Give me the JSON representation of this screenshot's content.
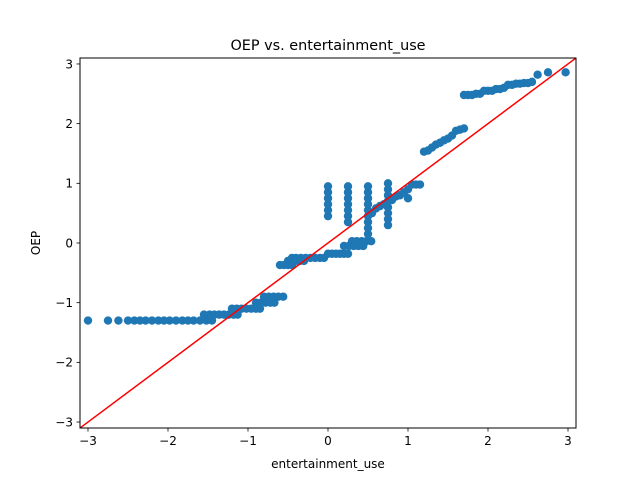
{
  "chart_data": {
    "type": "scatter",
    "title": "OEP  vs. entertainment_use",
    "xlabel": "entertainment_use",
    "ylabel": "OEP",
    "xlim": [
      -3.1,
      3.1
    ],
    "ylim": [
      -3.1,
      3.1
    ],
    "xticks": [
      -3,
      -2,
      -1,
      0,
      1,
      2,
      3
    ],
    "yticks": [
      -3,
      -2,
      -1,
      0,
      1,
      2,
      3
    ],
    "xtick_labels": [
      "−3",
      "−2",
      "−1",
      "0",
      "1",
      "2",
      "3"
    ],
    "ytick_labels": [
      "−3",
      "−2",
      "−1",
      "0",
      "1",
      "2",
      "3"
    ],
    "grid": false,
    "marker_color": "#1f77b4",
    "reference_line": {
      "slope": 1,
      "intercept": 0,
      "color": "#ff0000"
    },
    "points": [
      [
        -3.0,
        -1.3
      ],
      [
        -2.75,
        -1.3
      ],
      [
        -2.62,
        -1.3
      ],
      [
        -2.5,
        -1.3
      ],
      [
        -2.42,
        -1.3
      ],
      [
        -2.35,
        -1.3
      ],
      [
        -2.28,
        -1.3
      ],
      [
        -2.2,
        -1.3
      ],
      [
        -2.12,
        -1.3
      ],
      [
        -2.05,
        -1.3
      ],
      [
        -1.98,
        -1.3
      ],
      [
        -1.9,
        -1.3
      ],
      [
        -1.82,
        -1.3
      ],
      [
        -1.75,
        -1.3
      ],
      [
        -1.68,
        -1.3
      ],
      [
        -1.6,
        -1.3
      ],
      [
        -1.52,
        -1.3
      ],
      [
        -1.45,
        -1.3
      ],
      [
        -1.55,
        -1.2
      ],
      [
        -1.48,
        -1.2
      ],
      [
        -1.42,
        -1.2
      ],
      [
        -1.36,
        -1.2
      ],
      [
        -1.3,
        -1.2
      ],
      [
        -1.24,
        -1.2
      ],
      [
        -1.18,
        -1.2
      ],
      [
        -1.13,
        -1.2
      ],
      [
        -1.2,
        -1.1
      ],
      [
        -1.14,
        -1.1
      ],
      [
        -1.08,
        -1.1
      ],
      [
        -1.02,
        -1.1
      ],
      [
        -0.96,
        -1.1
      ],
      [
        -0.9,
        -1.1
      ],
      [
        -0.85,
        -1.1
      ],
      [
        -0.9,
        -1.0
      ],
      [
        -0.84,
        -1.0
      ],
      [
        -0.78,
        -1.0
      ],
      [
        -0.72,
        -1.0
      ],
      [
        -0.67,
        -1.0
      ],
      [
        -0.8,
        -0.9
      ],
      [
        -0.74,
        -0.9
      ],
      [
        -0.68,
        -0.9
      ],
      [
        -0.62,
        -0.9
      ],
      [
        -0.56,
        -0.9
      ],
      [
        -0.6,
        -0.37
      ],
      [
        -0.55,
        -0.37
      ],
      [
        -0.5,
        -0.37
      ],
      [
        -0.45,
        -0.37
      ],
      [
        -0.5,
        -0.3
      ],
      [
        -0.45,
        -0.3
      ],
      [
        -0.4,
        -0.3
      ],
      [
        -0.35,
        -0.3
      ],
      [
        -0.3,
        -0.3
      ],
      [
        -0.45,
        -0.25
      ],
      [
        -0.4,
        -0.25
      ],
      [
        -0.34,
        -0.25
      ],
      [
        -0.28,
        -0.25
      ],
      [
        -0.22,
        -0.25
      ],
      [
        -0.16,
        -0.25
      ],
      [
        -0.1,
        -0.25
      ],
      [
        -0.05,
        -0.25
      ],
      [
        0.0,
        -0.18
      ],
      [
        0.05,
        -0.18
      ],
      [
        0.1,
        -0.18
      ],
      [
        0.15,
        -0.18
      ],
      [
        0.2,
        -0.18
      ],
      [
        0.25,
        -0.18
      ],
      [
        0.2,
        -0.05
      ],
      [
        0.26,
        -0.05
      ],
      [
        0.32,
        -0.05
      ],
      [
        0.38,
        -0.05
      ],
      [
        0.44,
        -0.05
      ],
      [
        0.3,
        0.03
      ],
      [
        0.36,
        0.03
      ],
      [
        0.42,
        0.03
      ],
      [
        0.48,
        0.03
      ],
      [
        0.54,
        0.03
      ],
      [
        0.0,
        0.45
      ],
      [
        0.0,
        0.55
      ],
      [
        0.0,
        0.65
      ],
      [
        0.0,
        0.75
      ],
      [
        0.0,
        0.85
      ],
      [
        0.0,
        0.95
      ],
      [
        0.25,
        0.35
      ],
      [
        0.25,
        0.45
      ],
      [
        0.25,
        0.55
      ],
      [
        0.25,
        0.65
      ],
      [
        0.25,
        0.75
      ],
      [
        0.25,
        0.85
      ],
      [
        0.25,
        0.95
      ],
      [
        0.5,
        0.15
      ],
      [
        0.5,
        0.25
      ],
      [
        0.5,
        0.35
      ],
      [
        0.5,
        0.45
      ],
      [
        0.5,
        0.55
      ],
      [
        0.5,
        0.65
      ],
      [
        0.5,
        0.75
      ],
      [
        0.5,
        0.85
      ],
      [
        0.5,
        0.95
      ],
      [
        0.55,
        0.5
      ],
      [
        0.6,
        0.58
      ],
      [
        0.65,
        0.62
      ],
      [
        0.7,
        0.65
      ],
      [
        0.75,
        0.7
      ],
      [
        0.8,
        0.72
      ],
      [
        0.85,
        0.78
      ],
      [
        0.9,
        0.8
      ],
      [
        0.95,
        0.85
      ],
      [
        1.0,
        0.9
      ],
      [
        0.75,
        0.3
      ],
      [
        0.75,
        0.4
      ],
      [
        0.75,
        0.5
      ],
      [
        0.75,
        0.6
      ],
      [
        0.75,
        0.7
      ],
      [
        0.75,
        0.8
      ],
      [
        0.75,
        0.9
      ],
      [
        0.75,
        1.0
      ],
      [
        1.0,
        0.75
      ],
      [
        1.05,
        0.98
      ],
      [
        1.1,
        0.98
      ],
      [
        1.15,
        0.98
      ],
      [
        1.2,
        1.53
      ],
      [
        1.25,
        1.55
      ],
      [
        1.3,
        1.6
      ],
      [
        1.35,
        1.65
      ],
      [
        1.4,
        1.68
      ],
      [
        1.45,
        1.72
      ],
      [
        1.5,
        1.75
      ],
      [
        1.55,
        1.8
      ],
      [
        1.6,
        1.88
      ],
      [
        1.65,
        1.9
      ],
      [
        1.7,
        1.92
      ],
      [
        1.7,
        2.48
      ],
      [
        1.75,
        2.48
      ],
      [
        1.8,
        2.48
      ],
      [
        1.85,
        2.5
      ],
      [
        1.9,
        2.5
      ],
      [
        1.95,
        2.55
      ],
      [
        2.0,
        2.55
      ],
      [
        2.05,
        2.55
      ],
      [
        2.1,
        2.58
      ],
      [
        2.15,
        2.58
      ],
      [
        2.2,
        2.6
      ],
      [
        2.25,
        2.65
      ],
      [
        2.3,
        2.65
      ],
      [
        2.35,
        2.67
      ],
      [
        2.4,
        2.67
      ],
      [
        2.45,
        2.68
      ],
      [
        2.5,
        2.68
      ],
      [
        2.55,
        2.7
      ],
      [
        2.62,
        2.82
      ],
      [
        2.75,
        2.86
      ],
      [
        2.97,
        2.86
      ]
    ]
  }
}
